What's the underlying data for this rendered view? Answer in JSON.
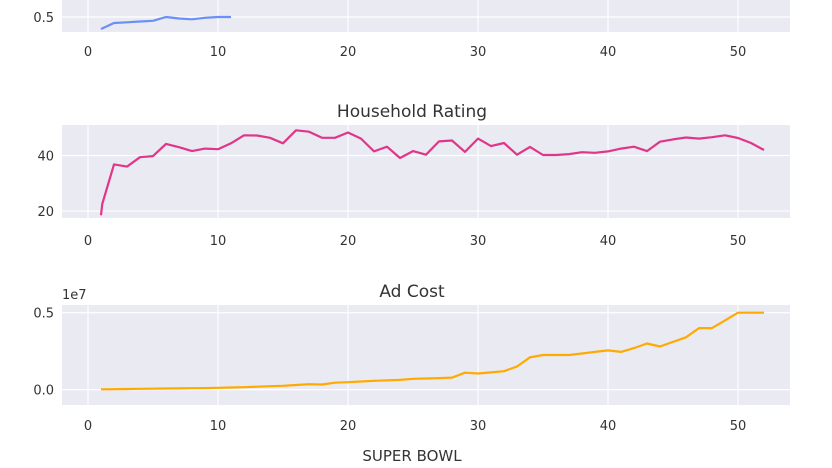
{
  "chart_data": [
    {
      "type": "line",
      "title": "",
      "color": "#6a8ff7",
      "xlim": [
        -2,
        54
      ],
      "ylim": [
        0.4,
        0.68
      ],
      "xticks": [
        0,
        10,
        20,
        30,
        40,
        50
      ],
      "xtick_labels": [
        "0",
        "10",
        "20",
        "30",
        "40",
        "50"
      ],
      "yticks": [
        0.5
      ],
      "ytick_labels": [
        "0.5"
      ],
      "x": [
        1,
        2,
        3,
        4,
        5,
        6,
        7,
        8,
        9,
        10,
        11
      ],
      "y": [
        0.42,
        0.46,
        0.465,
        0.47,
        0.475,
        0.5,
        0.49,
        0.485,
        0.495,
        0.5,
        0.5
      ]
    },
    {
      "type": "line",
      "title": "Household Rating",
      "color": "#e0368a",
      "xlim": [
        -2,
        54
      ],
      "ylim": [
        17.5,
        51
      ],
      "xticks": [
        0,
        10,
        20,
        30,
        40,
        50
      ],
      "xtick_labels": [
        "0",
        "10",
        "20",
        "30",
        "40",
        "50"
      ],
      "yticks": [
        20,
        40
      ],
      "ytick_labels": [
        "20",
        "40"
      ],
      "x": [
        1,
        1.1,
        2,
        3,
        4,
        5,
        6,
        7,
        8,
        9,
        10,
        11,
        12,
        13,
        14,
        15,
        16,
        17,
        18,
        19,
        20,
        21,
        22,
        23,
        24,
        25,
        26,
        27,
        28,
        29,
        30,
        31,
        32,
        33,
        34,
        35,
        36,
        37,
        38,
        39,
        40,
        41,
        42,
        43,
        44,
        45,
        46,
        47,
        48,
        49,
        50,
        51,
        52
      ],
      "y": [
        18.5,
        22.6,
        36.8,
        36.0,
        39.4,
        39.8,
        44.2,
        43.0,
        41.6,
        42.5,
        42.3,
        44.4,
        47.3,
        47.2,
        46.4,
        44.4,
        49.1,
        48.6,
        46.4,
        46.4,
        48.3,
        46.1,
        41.5,
        43.2,
        39.1,
        41.6,
        40.3,
        45.1,
        45.4,
        41.3,
        46.1,
        43.4,
        44.5,
        40.3,
        43.1,
        40.2,
        40.2,
        40.5,
        41.2,
        41.0,
        41.5,
        42.5,
        43.2,
        41.6,
        45.0,
        45.8,
        46.5,
        46.1,
        46.6,
        47.3,
        46.3,
        44.5,
        42.0
      ]
    },
    {
      "type": "line",
      "title": "Ad Cost",
      "color": "#ffaa00",
      "xlim": [
        -2,
        54
      ],
      "ylim": [
        -0.1,
        0.55
      ],
      "offset_label": "1e7",
      "xlabel": "SUPER BOWL",
      "xticks": [
        0,
        10,
        20,
        30,
        40,
        50
      ],
      "xtick_labels": [
        "0",
        "10",
        "20",
        "30",
        "40",
        "50"
      ],
      "yticks": [
        0.0,
        0.5
      ],
      "ytick_labels": [
        "0.0",
        "0.5"
      ],
      "x": [
        1,
        2,
        3,
        4,
        5,
        6,
        7,
        8,
        9,
        10,
        11,
        12,
        13,
        14,
        15,
        16,
        17,
        18,
        19,
        20,
        21,
        22,
        23,
        24,
        25,
        26,
        27,
        28,
        29,
        30,
        31,
        32,
        33,
        34,
        35,
        36,
        37,
        38,
        39,
        40,
        41,
        42,
        43,
        44,
        45,
        46,
        47,
        48,
        49,
        50,
        51,
        52
      ],
      "y": [
        0.002,
        0.003,
        0.004,
        0.005,
        0.006,
        0.007,
        0.008,
        0.009,
        0.01,
        0.012,
        0.014,
        0.016,
        0.019,
        0.022,
        0.025,
        0.03,
        0.035,
        0.033,
        0.045,
        0.048,
        0.053,
        0.057,
        0.06,
        0.063,
        0.07,
        0.072,
        0.075,
        0.078,
        0.11,
        0.105,
        0.112,
        0.12,
        0.15,
        0.21,
        0.225,
        0.225,
        0.225,
        0.235,
        0.245,
        0.255,
        0.245,
        0.27,
        0.3,
        0.28,
        0.31,
        0.34,
        0.4,
        0.4,
        0.45,
        0.5,
        0.5,
        0.5
      ]
    }
  ]
}
